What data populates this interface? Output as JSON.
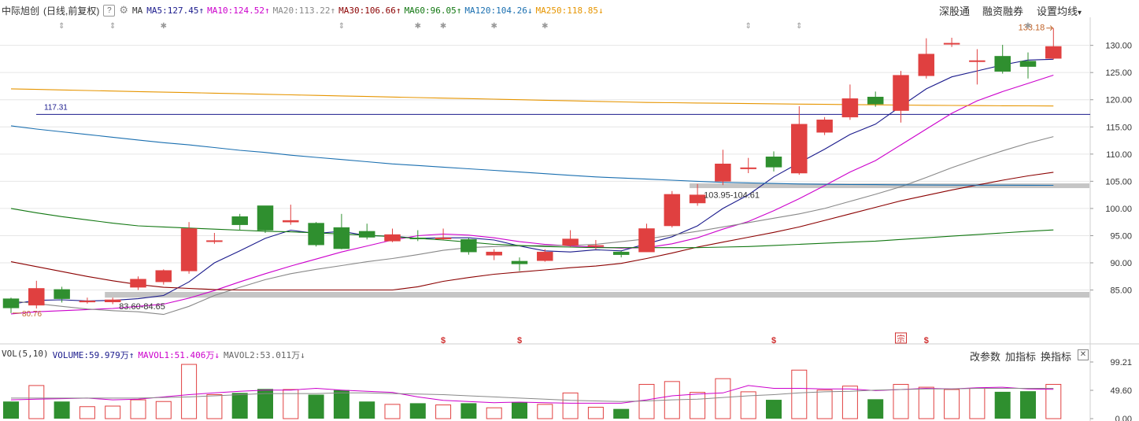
{
  "header": {
    "stock_name": "中际旭创",
    "period": "(日线,前复权)",
    "help_label": "?",
    "ma_label": "MA",
    "ma": [
      {
        "label": "MA5:127.45",
        "arrow": "↑",
        "color": "#1a1a8c"
      },
      {
        "label": "MA10:124.52",
        "arrow": "↑",
        "color": "#cc00cc"
      },
      {
        "label": "MA20:113.22",
        "arrow": "↑",
        "color": "#888888"
      },
      {
        "label": "MA30:106.66",
        "arrow": "↑",
        "color": "#8b0000"
      },
      {
        "label": "MA60:96.05",
        "arrow": "↑",
        "color": "#117711"
      },
      {
        "label": "MA120:104.26",
        "arrow": "↓",
        "color": "#1a6fb0"
      },
      {
        "label": "MA250:118.85",
        "arrow": "↓",
        "color": "#e69500"
      }
    ]
  },
  "toolbar": {
    "btn1": "深股通",
    "btn2": "融资融券",
    "btn3": "设置均线",
    "btn3_arrow": "▾"
  },
  "volume_header": {
    "vol_label": "VOL(5,10)",
    "volume": "VOLUME:59.979万",
    "volume_arrow": "↑",
    "mavol1": "MAVOL1:51.406万",
    "mavol1_arrow": "↓",
    "mavol2": "MAVOL2:53.011万",
    "mavol2_arrow": "↓",
    "btn_params": "改参数",
    "btn_add": "加指标",
    "btn_switch": "换指标",
    "close": "✕"
  },
  "annotations": {
    "high_label": "133.18",
    "low_label": "80.76",
    "hline_label": "117.31",
    "zone1_label": "83.60-84.65",
    "zone2_label": "103.95-104.61",
    "event_marks": [
      "$",
      "$",
      "$",
      "$"
    ],
    "event_badge": "宗"
  },
  "colors": {
    "up": "#e04040",
    "down": "#2f8f2f",
    "grid": "#e6e6e6",
    "hline": "#1a1a8c",
    "zone": "#bbbbbb"
  },
  "chart_data": [
    {
      "type": "candlestick",
      "ylim": [
        79,
        134
      ],
      "y_ticks": [
        85,
        90,
        95,
        100,
        105,
        110,
        115,
        120,
        125,
        130
      ],
      "y_tick_labels": [
        "85.00",
        "90.00",
        "95.00",
        "100.00",
        "105.00",
        "110.00",
        "115.00",
        "120.00",
        "125.00",
        "130.00"
      ],
      "hline": 117.31,
      "zones": [
        [
          83.6,
          84.65
        ],
        [
          103.95,
          104.61
        ]
      ],
      "candles": [
        [
          83.4,
          81.7,
          83.6,
          80.76
        ],
        [
          82.2,
          85.3,
          86.7,
          81.6
        ],
        [
          85.1,
          83.4,
          85.6,
          82.7
        ],
        [
          83.0,
          83.0,
          83.6,
          82.5
        ],
        [
          82.8,
          83.2,
          83.6,
          82.4
        ],
        [
          85.5,
          87.0,
          87.5,
          85.0
        ],
        [
          86.5,
          88.6,
          88.8,
          86.0
        ],
        [
          88.5,
          96.3,
          97.5,
          88.0
        ],
        [
          94.0,
          94.1,
          95.5,
          93.5
        ],
        [
          98.5,
          97.0,
          99.0,
          96.0
        ],
        [
          100.5,
          96.0,
          100.5,
          95.5
        ],
        [
          97.5,
          97.8,
          100.7,
          97.0
        ],
        [
          97.3,
          93.3,
          97.5,
          93.0
        ],
        [
          96.5,
          92.6,
          99.0,
          92.5
        ],
        [
          95.8,
          94.7,
          97.2,
          94.3
        ],
        [
          94.0,
          95.2,
          96.3,
          93.8
        ],
        [
          94.6,
          94.4,
          96.0,
          94.0
        ],
        [
          94.5,
          94.6,
          96.3,
          94.2
        ],
        [
          94.3,
          92.0,
          94.6,
          91.5
        ],
        [
          91.4,
          92.0,
          92.5,
          90.5
        ],
        [
          90.3,
          89.8,
          91.0,
          88.5
        ],
        [
          90.4,
          92.0,
          92.5,
          90.2
        ],
        [
          93.2,
          94.4,
          96.0,
          93.0
        ],
        [
          93.0,
          93.2,
          94.2,
          92.5
        ],
        [
          92.0,
          91.5,
          92.2,
          91.0
        ],
        [
          92.0,
          96.3,
          97.2,
          92.0
        ],
        [
          96.8,
          102.6,
          103.2,
          96.5
        ],
        [
          101.0,
          102.5,
          104.5,
          100.5
        ],
        [
          105.0,
          108.2,
          110.8,
          104.3
        ],
        [
          107.5,
          107.5,
          109.3,
          106.5
        ],
        [
          109.5,
          107.6,
          110.5,
          106.8
        ],
        [
          106.5,
          115.5,
          118.8,
          106.2
        ],
        [
          114.0,
          116.3,
          116.8,
          113.5
        ],
        [
          116.8,
          120.2,
          122.8,
          116.3
        ],
        [
          120.5,
          119.2,
          121.5,
          118.7
        ],
        [
          118.0,
          124.5,
          125.3,
          115.8
        ],
        [
          124.4,
          128.4,
          131.3,
          123.9
        ],
        [
          130.4,
          130.4,
          131.4,
          129.7
        ],
        [
          127.2,
          127.2,
          129.3,
          122.8
        ],
        [
          128.0,
          125.2,
          130.1,
          124.8
        ],
        [
          127.1,
          126.1,
          128.7,
          123.9
        ],
        [
          127.6,
          129.8,
          133.18,
          127.4
        ]
      ],
      "ma_lines": [
        {
          "name": "MA5",
          "color": "#1a1a8c",
          "values": [
            82.4,
            83.1,
            83.2,
            83.0,
            83.1,
            83.4,
            84.0,
            86.5,
            90.0,
            92.2,
            94.5,
            96.0,
            95.4,
            95.8,
            95.0,
            94.9,
            94.5,
            94.6,
            94.6,
            94.2,
            93.1,
            92.2,
            92.0,
            92.4,
            92.2,
            93.5,
            94.8,
            96.8,
            100.0,
            102.5,
            105.8,
            108.4,
            110.9,
            113.6,
            115.5,
            118.8,
            122.0,
            124.2,
            125.3,
            126.4,
            127.3,
            127.45
          ]
        },
        {
          "name": "MA10",
          "color": "#cc00cc",
          "values": [
            80.6,
            81.0,
            81.2,
            81.4,
            81.6,
            82.0,
            82.4,
            83.5,
            84.9,
            86.5,
            88.0,
            89.4,
            90.7,
            92.0,
            93.1,
            94.2,
            95.0,
            95.3,
            95.1,
            94.6,
            93.9,
            93.4,
            93.1,
            92.9,
            92.7,
            92.8,
            93.5,
            94.6,
            96.2,
            97.6,
            99.6,
            101.8,
            104.2,
            106.7,
            108.8,
            111.7,
            114.6,
            117.5,
            119.8,
            121.5,
            123.0,
            124.52
          ]
        },
        {
          "name": "MA20",
          "color": "#888888",
          "values": [
            83.0,
            82.5,
            82.0,
            81.5,
            81.2,
            81.0,
            80.5,
            82.0,
            84.0,
            85.5,
            86.9,
            88.0,
            88.8,
            89.5,
            90.2,
            90.8,
            91.5,
            92.3,
            92.8,
            93.0,
            93.1,
            93.2,
            93.2,
            93.4,
            93.9,
            94.4,
            95.1,
            95.8,
            96.6,
            97.4,
            98.2,
            99.0,
            100.0,
            101.3,
            102.6,
            104.0,
            105.7,
            107.5,
            109.1,
            110.6,
            112.0,
            113.22
          ]
        },
        {
          "name": "MA30",
          "color": "#8b0000",
          "values": [
            90.2,
            89.3,
            88.4,
            87.5,
            86.7,
            86.0,
            85.5,
            85.3,
            85.1,
            85.0,
            85.0,
            85.0,
            85.0,
            85.0,
            85.0,
            85.0,
            85.6,
            86.6,
            87.3,
            87.9,
            88.3,
            88.7,
            89.1,
            89.4,
            89.9,
            90.8,
            91.8,
            92.9,
            93.8,
            94.7,
            95.6,
            96.6,
            97.8,
            99.0,
            100.2,
            101.4,
            102.4,
            103.4,
            104.3,
            105.2,
            106.0,
            106.66
          ]
        },
        {
          "name": "MA60",
          "color": "#117711",
          "values": [
            100.0,
            99.2,
            98.5,
            97.9,
            97.3,
            96.8,
            96.6,
            96.4,
            96.2,
            96.0,
            95.8,
            95.7,
            95.5,
            95.3,
            95.1,
            94.8,
            94.5,
            94.2,
            93.8,
            93.4,
            93.2,
            93.0,
            92.9,
            92.8,
            92.8,
            92.8,
            92.8,
            92.8,
            92.9,
            93.0,
            93.2,
            93.4,
            93.6,
            93.8,
            94.0,
            94.3,
            94.6,
            94.9,
            95.2,
            95.5,
            95.8,
            96.05
          ]
        },
        {
          "name": "MA120",
          "color": "#1a6fb0",
          "values": [
            115.2,
            114.6,
            114.1,
            113.6,
            113.1,
            112.6,
            112.1,
            111.7,
            111.2,
            110.7,
            110.3,
            109.8,
            109.4,
            109.0,
            108.6,
            108.2,
            107.9,
            107.6,
            107.3,
            107.0,
            106.7,
            106.4,
            106.1,
            105.8,
            105.6,
            105.4,
            105.2,
            105.0,
            104.8,
            104.7,
            104.6,
            104.5,
            104.45,
            104.4,
            104.38,
            104.35,
            104.32,
            104.3,
            104.29,
            104.28,
            104.27,
            104.26
          ]
        },
        {
          "name": "MA250",
          "color": "#e69500",
          "values": [
            122.0,
            121.9,
            121.8,
            121.7,
            121.6,
            121.5,
            121.4,
            121.3,
            121.2,
            121.1,
            121.0,
            120.9,
            120.8,
            120.7,
            120.6,
            120.5,
            120.4,
            120.3,
            120.2,
            120.1,
            120.0,
            119.9,
            119.8,
            119.7,
            119.6,
            119.5,
            119.45,
            119.4,
            119.35,
            119.3,
            119.25,
            119.2,
            119.15,
            119.1,
            119.06,
            119.02,
            118.98,
            118.95,
            118.92,
            118.89,
            118.87,
            118.85
          ]
        }
      ]
    },
    {
      "type": "volume",
      "unit": "万",
      "ylim": [
        0,
        99.21
      ],
      "y_tick_labels": [
        "99.21",
        "49.60",
        "0.00"
      ],
      "y_ticks": [
        99.21,
        49.6,
        0
      ],
      "values": [
        30,
        58,
        30,
        21,
        22,
        33,
        30,
        95,
        42,
        45,
        52,
        51,
        42,
        50,
        30,
        25,
        27,
        24,
        27,
        19,
        29,
        25,
        45,
        20,
        17,
        60,
        65,
        46,
        70,
        47,
        33,
        85,
        50,
        57,
        34,
        60,
        55,
        51,
        53,
        47,
        48,
        60
      ],
      "mavol1": [
        33,
        34,
        35,
        36,
        33,
        34,
        38,
        42,
        45,
        48,
        50,
        50,
        53,
        50,
        48,
        46,
        38,
        32,
        30,
        28,
        29,
        28,
        27,
        27,
        27,
        33,
        40,
        43,
        45,
        58,
        53,
        53,
        52,
        52,
        49,
        51,
        53,
        52,
        54,
        55,
        52,
        51.4
      ],
      "mavol2": [
        36,
        36,
        36,
        36,
        36,
        36,
        37,
        38,
        40,
        42,
        44,
        44,
        44,
        45,
        45,
        44,
        43,
        42,
        40,
        38,
        36,
        34,
        32,
        31,
        30,
        31,
        33,
        34,
        37,
        40,
        42,
        45,
        47,
        48,
        50,
        51,
        52,
        52,
        53,
        53,
        53,
        53.0
      ]
    }
  ]
}
